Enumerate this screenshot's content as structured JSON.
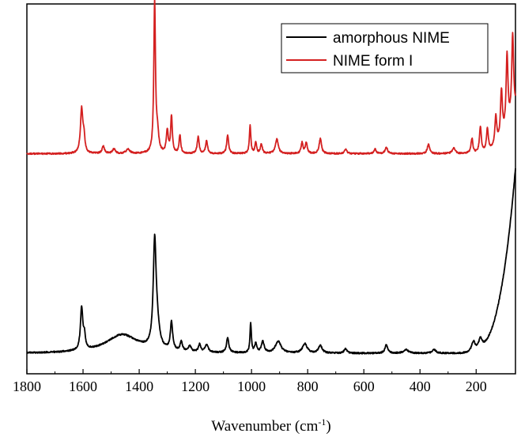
{
  "chart_data": {
    "type": "line",
    "title": "",
    "xlabel": "Wavenumber (cm",
    "xlabel_sup": "-1",
    "xlabel_tail": ")",
    "ylabel": "",
    "xlim": [
      1800,
      60
    ],
    "x_reversed": true,
    "ylim": [
      0,
      1
    ],
    "y_ticks_labeled": false,
    "x_ticks": [
      1800,
      1600,
      1400,
      1200,
      1000,
      800,
      600,
      400,
      200
    ],
    "x_tick_labels": [
      "1800",
      "1600",
      "1400",
      "1200",
      "1000",
      "800",
      "600",
      "400",
      "200"
    ],
    "grid": false,
    "legend": {
      "position": "top-right",
      "entries": [
        {
          "label": "amorphous NIME",
          "color": "#000000"
        },
        {
          "label": "NIME form I",
          "color": "#d42020"
        }
      ]
    },
    "series": [
      {
        "name": "amorphous NIME",
        "color": "#000000",
        "offset": 0.0,
        "baseline": 0.055,
        "peaks": [
          {
            "x": 1605,
            "h": 0.115,
            "w": 5
          },
          {
            "x": 1595,
            "h": 0.035,
            "w": 4
          },
          {
            "x": 1460,
            "h": 0.05,
            "w": 70
          },
          {
            "x": 1345,
            "h": 0.27,
            "w": 6
          },
          {
            "x": 1337,
            "h": 0.06,
            "w": 10
          },
          {
            "x": 1285,
            "h": 0.075,
            "w": 5
          },
          {
            "x": 1250,
            "h": 0.025,
            "w": 5
          },
          {
            "x": 1220,
            "h": 0.015,
            "w": 6
          },
          {
            "x": 1185,
            "h": 0.02,
            "w": 5
          },
          {
            "x": 1160,
            "h": 0.022,
            "w": 6
          },
          {
            "x": 1085,
            "h": 0.04,
            "w": 5
          },
          {
            "x": 1003,
            "h": 0.08,
            "w": 3
          },
          {
            "x": 985,
            "h": 0.025,
            "w": 4
          },
          {
            "x": 960,
            "h": 0.03,
            "w": 6
          },
          {
            "x": 905,
            "h": 0.032,
            "w": 12
          },
          {
            "x": 810,
            "h": 0.025,
            "w": 10
          },
          {
            "x": 755,
            "h": 0.02,
            "w": 8
          },
          {
            "x": 665,
            "h": 0.012,
            "w": 6
          },
          {
            "x": 520,
            "h": 0.022,
            "w": 6
          },
          {
            "x": 450,
            "h": 0.01,
            "w": 10
          },
          {
            "x": 350,
            "h": 0.01,
            "w": 8
          },
          {
            "x": 210,
            "h": 0.03,
            "w": 8
          },
          {
            "x": 185,
            "h": 0.03,
            "w": 8
          }
        ],
        "rise": {
          "start": 240,
          "end": 60,
          "height": 0.5
        }
      },
      {
        "name": "NIME form I",
        "color": "#d42020",
        "offset": 0.0,
        "baseline": 0.595,
        "peaks": [
          {
            "x": 1605,
            "h": 0.12,
            "w": 5
          },
          {
            "x": 1597,
            "h": 0.04,
            "w": 4
          },
          {
            "x": 1528,
            "h": 0.02,
            "w": 5
          },
          {
            "x": 1490,
            "h": 0.012,
            "w": 6
          },
          {
            "x": 1440,
            "h": 0.012,
            "w": 8
          },
          {
            "x": 1345,
            "h": 0.41,
            "w": 3.5
          },
          {
            "x": 1335,
            "h": 0.05,
            "w": 5
          },
          {
            "x": 1300,
            "h": 0.06,
            "w": 4
          },
          {
            "x": 1285,
            "h": 0.1,
            "w": 3.5
          },
          {
            "x": 1255,
            "h": 0.05,
            "w": 3.5
          },
          {
            "x": 1190,
            "h": 0.045,
            "w": 4
          },
          {
            "x": 1160,
            "h": 0.035,
            "w": 4
          },
          {
            "x": 1085,
            "h": 0.05,
            "w": 4
          },
          {
            "x": 1005,
            "h": 0.078,
            "w": 3
          },
          {
            "x": 985,
            "h": 0.03,
            "w": 3.5
          },
          {
            "x": 965,
            "h": 0.025,
            "w": 4
          },
          {
            "x": 910,
            "h": 0.04,
            "w": 6
          },
          {
            "x": 820,
            "h": 0.03,
            "w": 4
          },
          {
            "x": 805,
            "h": 0.03,
            "w": 4
          },
          {
            "x": 755,
            "h": 0.04,
            "w": 5
          },
          {
            "x": 665,
            "h": 0.012,
            "w": 5
          },
          {
            "x": 560,
            "h": 0.012,
            "w": 5
          },
          {
            "x": 520,
            "h": 0.018,
            "w": 5
          },
          {
            "x": 370,
            "h": 0.025,
            "w": 5
          },
          {
            "x": 280,
            "h": 0.015,
            "w": 6
          },
          {
            "x": 215,
            "h": 0.04,
            "w": 4
          },
          {
            "x": 185,
            "h": 0.07,
            "w": 4
          },
          {
            "x": 160,
            "h": 0.06,
            "w": 4
          },
          {
            "x": 130,
            "h": 0.08,
            "w": 4
          },
          {
            "x": 110,
            "h": 0.13,
            "w": 4
          },
          {
            "x": 90,
            "h": 0.2,
            "w": 4
          },
          {
            "x": 70,
            "h": 0.22,
            "w": 4
          }
        ],
        "rise": {
          "start": 220,
          "end": 60,
          "height": 0.12
        }
      }
    ]
  }
}
